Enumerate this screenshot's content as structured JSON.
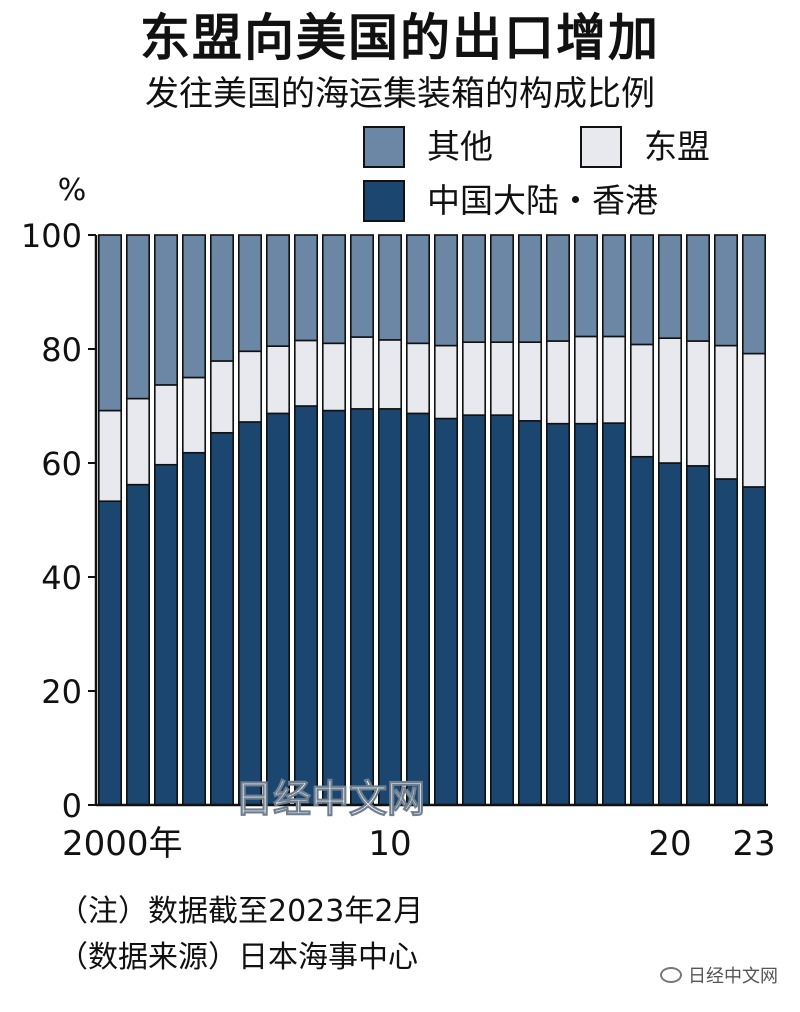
{
  "header": {
    "title": "东盟向美国的出口增加",
    "subtitle": "发往美国的海运集装箱的构成比例"
  },
  "legend": [
    {
      "name": "其他",
      "color": "#6c86a6"
    },
    {
      "name": "东盟",
      "color": "#e7e9ee"
    },
    {
      "name": "中国大陆・香港",
      "color": "#1b4670"
    }
  ],
  "chart_data": {
    "type": "bar",
    "stacked": true,
    "unit_label": "%",
    "ylim": [
      0,
      100
    ],
    "yticks": [
      0,
      20,
      40,
      60,
      80,
      100
    ],
    "x_tick_labels": [
      {
        "year": 2000,
        "label": "2000年"
      },
      {
        "year": 2010,
        "label": "10"
      },
      {
        "year": 2020,
        "label": "20"
      },
      {
        "year": 2023,
        "label": "23"
      }
    ],
    "categories": [
      2000,
      2001,
      2002,
      2003,
      2004,
      2005,
      2006,
      2007,
      2008,
      2009,
      2010,
      2011,
      2012,
      2013,
      2014,
      2015,
      2016,
      2017,
      2018,
      2019,
      2020,
      2021,
      2022,
      2023
    ],
    "series": [
      {
        "name": "中国大陆・香港",
        "color": "#1b4670",
        "values": [
          53.3,
          56.2,
          59.7,
          61.8,
          65.3,
          67.2,
          68.7,
          70.0,
          69.2,
          69.5,
          69.5,
          68.7,
          67.8,
          68.4,
          68.4,
          67.4,
          66.9,
          66.9,
          67.0,
          61.1,
          60.0,
          59.5,
          57.2,
          55.8
        ]
      },
      {
        "name": "东盟",
        "color": "#e7e9ee",
        "values": [
          15.9,
          15.1,
          14.0,
          13.2,
          12.6,
          12.4,
          11.8,
          11.5,
          11.8,
          12.6,
          12.1,
          12.3,
          12.8,
          12.8,
          12.8,
          13.8,
          14.5,
          15.3,
          15.2,
          19.7,
          21.9,
          21.9,
          23.4,
          23.4
        ]
      },
      {
        "name": "其他",
        "color": "#6c86a6",
        "values": [
          30.8,
          28.7,
          26.3,
          25.0,
          22.1,
          20.4,
          19.5,
          18.5,
          19.0,
          17.9,
          18.4,
          19.0,
          19.4,
          18.8,
          18.8,
          18.8,
          18.6,
          17.8,
          17.8,
          19.2,
          18.1,
          18.6,
          19.4,
          20.8
        ]
      }
    ]
  },
  "notes": {
    "note1": "（注）数据截至2023年2月",
    "note2": "（数据来源）日本海事中心"
  },
  "watermark": "日经中文网",
  "footer_brand": "日经中文网"
}
